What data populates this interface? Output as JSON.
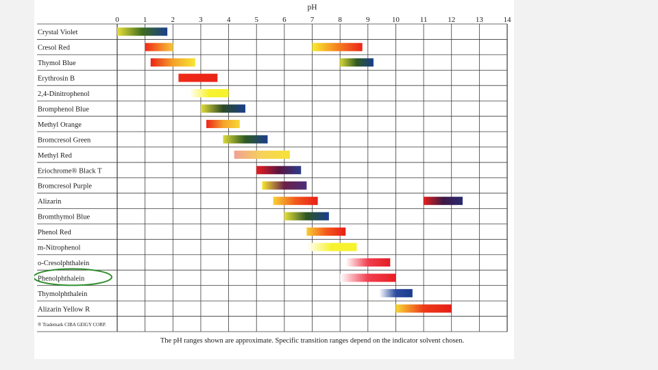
{
  "chart_data": {
    "type": "range-bar",
    "axis_title": "pH",
    "xlim": [
      0,
      14
    ],
    "xticks": [
      0,
      1,
      2,
      3,
      4,
      5,
      6,
      7,
      8,
      9,
      10,
      11,
      12,
      13,
      14
    ],
    "grid": true,
    "indicators": [
      {
        "name": "Crystal Violet",
        "ranges": [
          {
            "from": 0.0,
            "to": 1.8,
            "colors": [
              "#e8df3a",
              "#3e6d1e",
              "#1a3d8c"
            ]
          }
        ]
      },
      {
        "name": "Cresol Red",
        "ranges": [
          {
            "from": 1.0,
            "to": 2.0,
            "colors": [
              "#f02b18",
              "#f7c636"
            ]
          },
          {
            "from": 7.0,
            "to": 8.8,
            "colors": [
              "#f9ec30",
              "#f5821e",
              "#ec2418"
            ]
          }
        ]
      },
      {
        "name": "Thymol Blue",
        "ranges": [
          {
            "from": 1.2,
            "to": 2.8,
            "colors": [
              "#ea2418",
              "#f4a12a",
              "#f6e634"
            ]
          },
          {
            "from": 8.0,
            "to": 9.2,
            "colors": [
              "#d6d63a",
              "#2f5a20",
              "#1a3d8c"
            ]
          }
        ]
      },
      {
        "name": "Erythrosin B",
        "ranges": [
          {
            "from": 2.2,
            "to": 3.6,
            "colors": [
              "#ee2a18",
              "#ea2418"
            ]
          }
        ]
      },
      {
        "name": "2,4-Dinitrophenol",
        "ranges": [
          {
            "from": 2.6,
            "to": 4.0,
            "colors": [
              "#ffffff",
              "#f7f22e",
              "#f7f22e"
            ]
          }
        ]
      },
      {
        "name": "Bromphenol Blue",
        "ranges": [
          {
            "from": 3.0,
            "to": 4.6,
            "colors": [
              "#e3de38",
              "#2c4a26",
              "#1a3d8c"
            ]
          }
        ]
      },
      {
        "name": "Methyl Orange",
        "ranges": [
          {
            "from": 3.2,
            "to": 4.4,
            "colors": [
              "#ec2418",
              "#f6a02a",
              "#f7d936"
            ]
          }
        ]
      },
      {
        "name": "Bromcresol Green",
        "ranges": [
          {
            "from": 3.8,
            "to": 5.4,
            "colors": [
              "#dcd83a",
              "#2e5a22",
              "#1a3d8c"
            ]
          }
        ]
      },
      {
        "name": "Methyl Red",
        "ranges": [
          {
            "from": 4.2,
            "to": 6.2,
            "colors": [
              "#f0a094",
              "#f6d25a",
              "#f7e238"
            ]
          }
        ]
      },
      {
        "name": "Eriochrome® Black T",
        "ranges": [
          {
            "from": 5.0,
            "to": 6.6,
            "colors": [
              "#e81e20",
              "#5a1440",
              "#2c3c8a"
            ]
          }
        ]
      },
      {
        "name": "Bromcresol Purple",
        "ranges": [
          {
            "from": 5.2,
            "to": 6.8,
            "colors": [
              "#f7e634",
              "#6a2246",
              "#4a2c7a"
            ]
          }
        ]
      },
      {
        "name": "Alizarin",
        "ranges": [
          {
            "from": 5.6,
            "to": 7.2,
            "colors": [
              "#f7d036",
              "#f25a1c",
              "#e81e18"
            ]
          },
          {
            "from": 11.0,
            "to": 12.4,
            "colors": [
              "#e4201c",
              "#3e1844",
              "#2a2a72"
            ]
          }
        ]
      },
      {
        "name": "Bromthymol Blue",
        "ranges": [
          {
            "from": 6.0,
            "to": 7.6,
            "colors": [
              "#e6df38",
              "#2e5624",
              "#1a3d8c"
            ]
          }
        ]
      },
      {
        "name": "Phenol Red",
        "ranges": [
          {
            "from": 6.8,
            "to": 8.2,
            "colors": [
              "#f7cc34",
              "#f45a1c",
              "#e81e18"
            ]
          }
        ]
      },
      {
        "name": "m-Nitrophenol",
        "ranges": [
          {
            "from": 6.8,
            "to": 8.6,
            "colors": [
              "#ffffff",
              "#f7f22e",
              "#f7f22e"
            ]
          }
        ]
      },
      {
        "name": "o-Cresolphthalein",
        "ranges": [
          {
            "from": 8.2,
            "to": 9.8,
            "colors": [
              "#ffffff",
              "#f04050",
              "#e41e24"
            ]
          }
        ]
      },
      {
        "name": "Phenolphthalein",
        "ranges": [
          {
            "from": 8.0,
            "to": 10.0,
            "colors": [
              "#ffffff",
              "#f04050",
              "#e81e24"
            ]
          }
        ],
        "highlighted": true
      },
      {
        "name": "Thymolphthalein",
        "ranges": [
          {
            "from": 9.4,
            "to": 10.6,
            "colors": [
              "#ffffff",
              "#2c4ca0",
              "#1a3d8c"
            ]
          }
        ]
      },
      {
        "name": "Alizarin Yellow R",
        "ranges": [
          {
            "from": 10.0,
            "to": 12.0,
            "colors": [
              "#f7d836",
              "#ee3a18",
              "#e61e18"
            ]
          }
        ]
      }
    ],
    "footnote": "® Trademark CIBA GEIGY CORP.",
    "caption": "The pH ranges shown are approximate.  Specific transition ranges depend on the indicator solvent chosen.",
    "highlight_color": "#2f8f2f"
  }
}
